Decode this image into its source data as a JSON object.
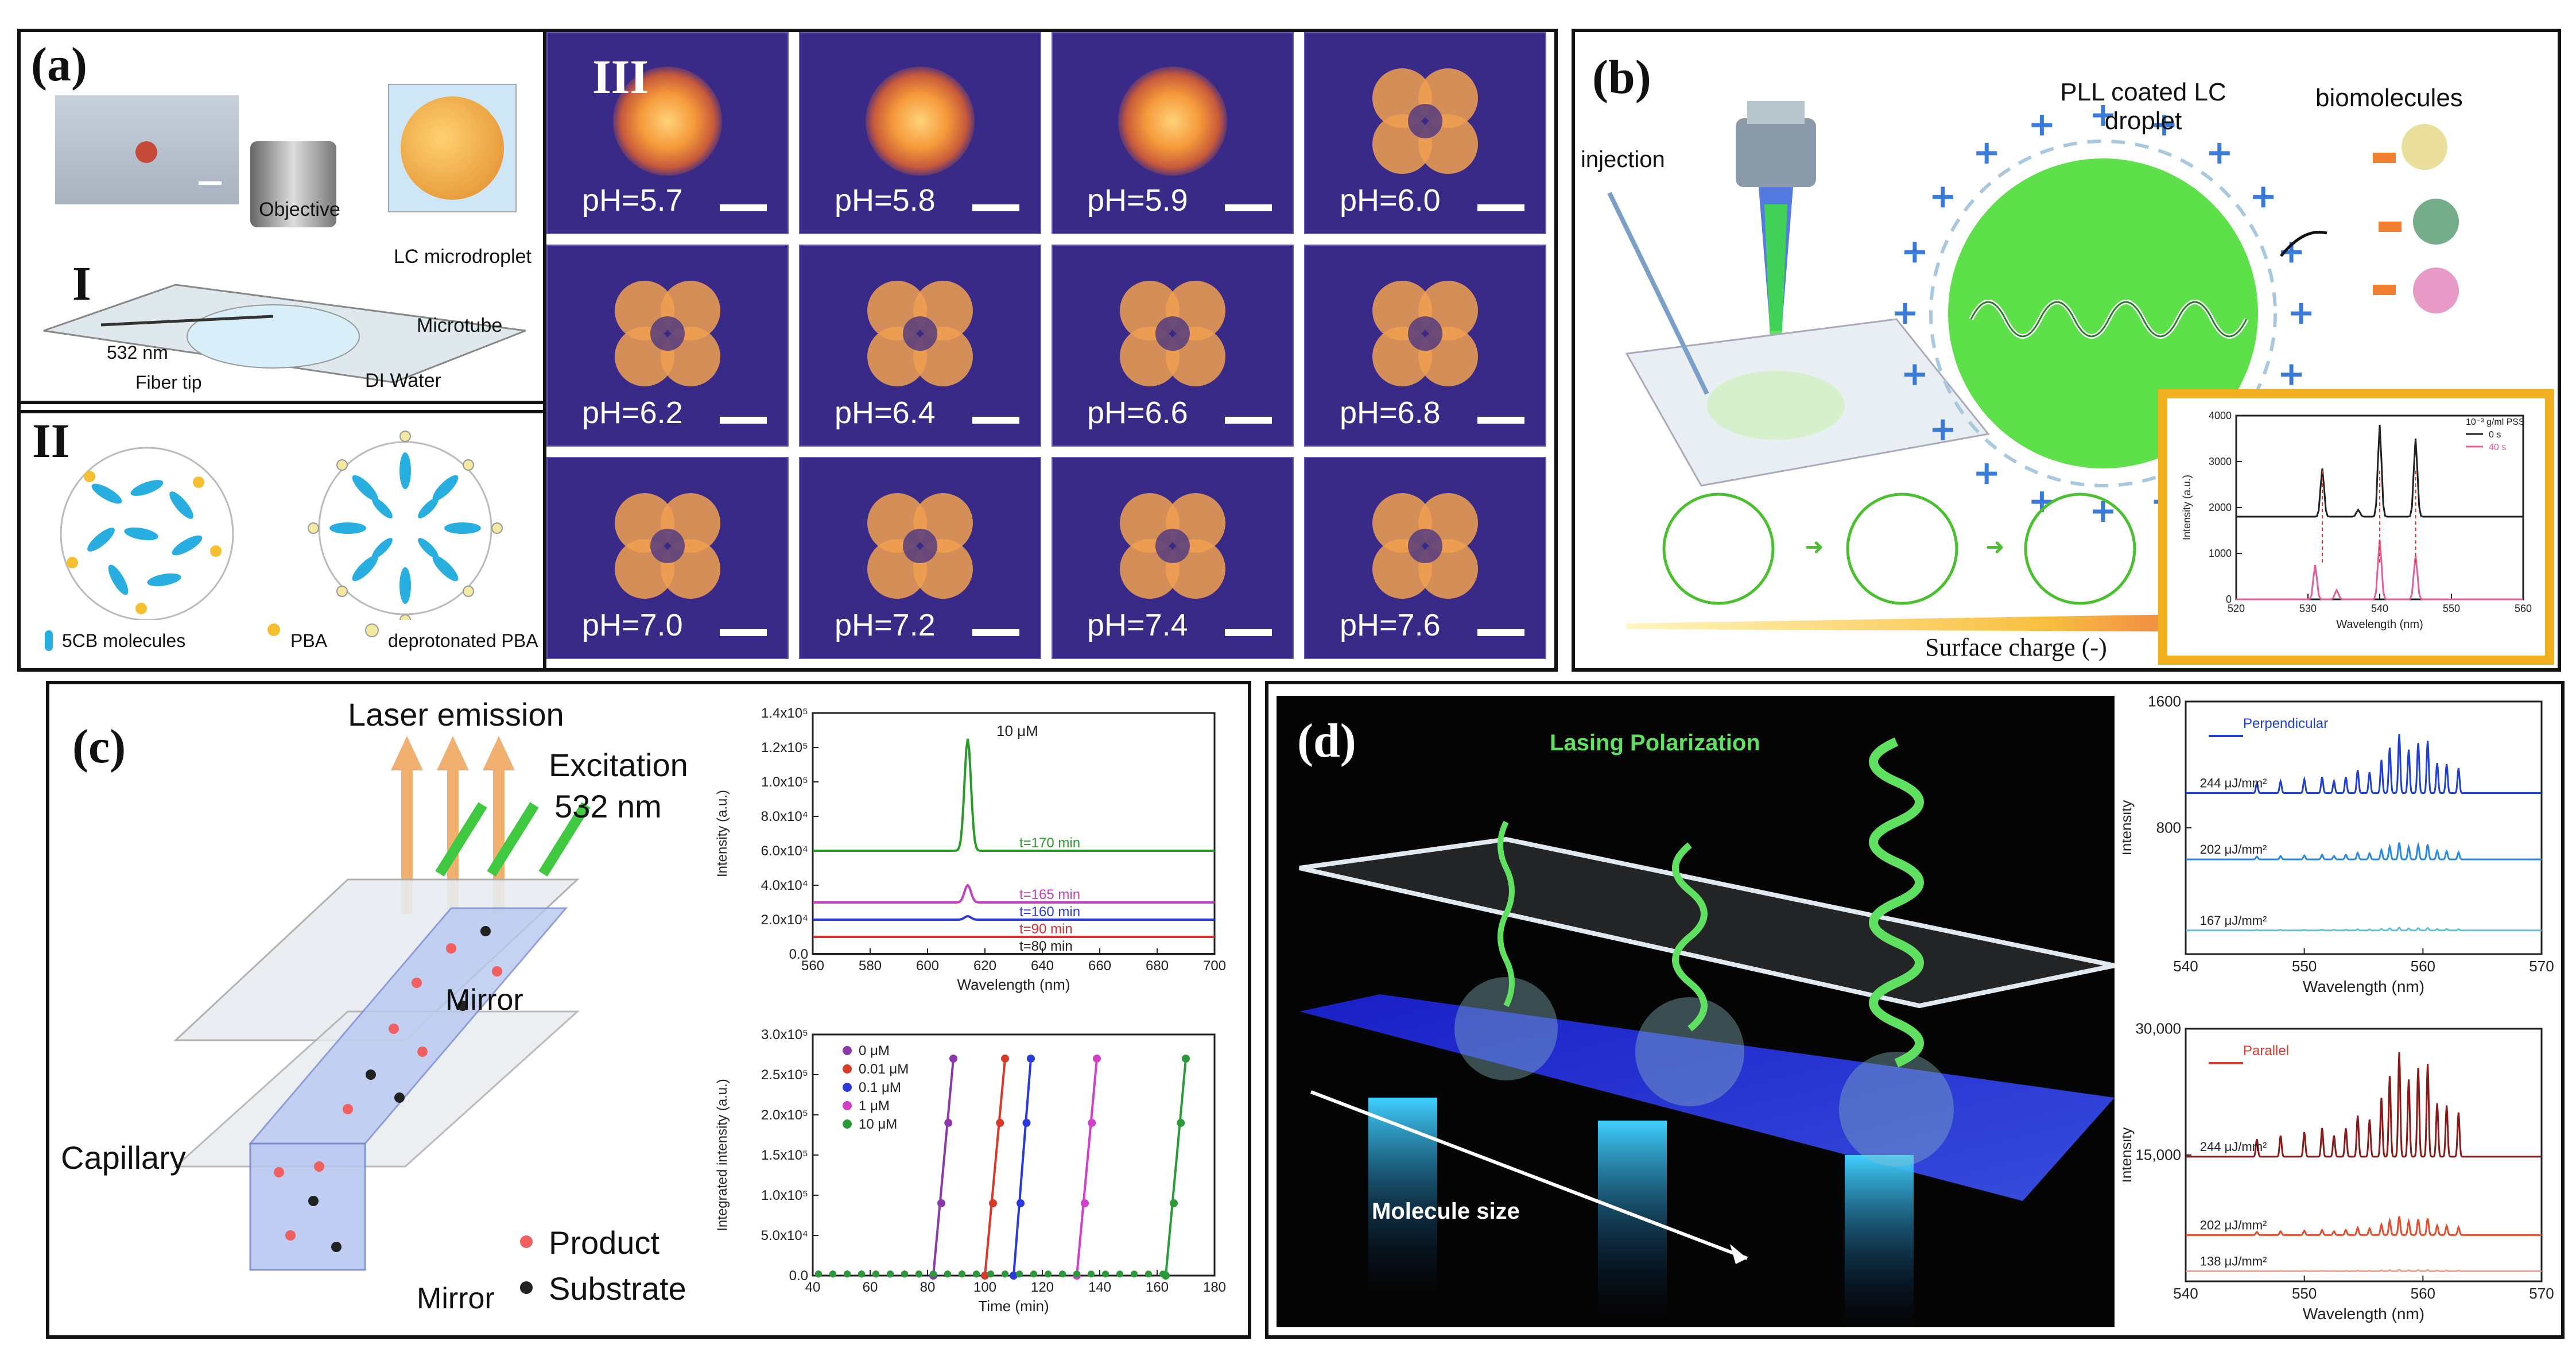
{
  "figure": {
    "panel_a": {
      "label": "(a)",
      "roman_I": "I",
      "roman_II": "II",
      "roman_III": "III",
      "setup_labels": [
        "Objective",
        "LC microdroplet",
        "532 nm",
        "Microtube",
        "Fiber tip",
        "DI Water"
      ],
      "legend": [
        "5CB molecules",
        "PBA",
        "deprotonated PBA"
      ],
      "tiles": [
        "pH=5.7",
        "pH=5.8",
        "pH=5.9",
        "pH=6.0",
        "pH=6.2",
        "pH=6.4",
        "pH=6.6",
        "pH=6.8",
        "pH=7.0",
        "pH=7.2",
        "pH=7.4",
        "pH=7.6"
      ]
    },
    "panel_b": {
      "label": "(b)",
      "injection": "injection",
      "droplet": "PLL coated LC droplet",
      "biomolecules": "biomolecules",
      "surface_charge": "Surface charge (-)",
      "colors": {
        "droplet": "#5de04a",
        "plus": "#3a7ad8",
        "frame": "#f0b020"
      }
    },
    "panel_c": {
      "label": "(c)",
      "laser_emission": "Laser emission",
      "excitation": "Excitation",
      "wavelength": "532 nm",
      "mirror_top": "Mirror",
      "mirror_bottom": "Mirror",
      "capillary": "Capillary",
      "product": "Product",
      "substrate": "Substrate"
    },
    "panel_d": {
      "label": "(d)",
      "lasing_polarization": "Lasing Polarization",
      "molecule_size": "Molecule size"
    }
  },
  "chart_data": [
    {
      "id": "b-inset",
      "type": "line",
      "xlabel": "Wavelength (nm)",
      "ylabel": "Intensity (a.u.)",
      "xlim": [
        520,
        560
      ],
      "ylim": [
        0,
        4000
      ],
      "xticks": [
        "520",
        "530",
        "540",
        "550",
        "560"
      ],
      "yticks": [
        "0",
        "1000",
        "2000",
        "3000",
        "4000"
      ],
      "legend_title": "10⁻³ g/ml PSS",
      "series": [
        {
          "name": "0 s",
          "color": "#222222",
          "baseline": 1800,
          "peaks": [
            [
              532,
              2850
            ],
            [
              537,
              1950
            ],
            [
              540,
              3800
            ],
            [
              545,
              3500
            ]
          ]
        },
        {
          "name": "40 s",
          "color": "#e0609a",
          "baseline": 0,
          "peaks": [
            [
              531,
              750
            ],
            [
              534,
              200
            ],
            [
              540,
              1300
            ],
            [
              545,
              950
            ]
          ]
        }
      ]
    },
    {
      "id": "c-top",
      "type": "line",
      "title": "10 μM",
      "xlabel": "Wavelength (nm)",
      "ylabel": "Intensity (a.u.)",
      "xlim": [
        560,
        700
      ],
      "ylim": [
        0,
        140000
      ],
      "xticks": [
        "560",
        "580",
        "600",
        "620",
        "640",
        "660",
        "680",
        "700"
      ],
      "yticks": [
        "0.0",
        "2.0x10⁴",
        "4.0x10⁴",
        "6.0x10⁴",
        "8.0x10⁴",
        "1.0x10⁵",
        "1.2x10⁵",
        "1.4x10⁵"
      ],
      "series": [
        {
          "name": "t=170 min",
          "color": "#2a9a2a",
          "baseline": 60000,
          "peak_x": 614,
          "peak_y": 125000
        },
        {
          "name": "t=165 min",
          "color": "#c040c0",
          "baseline": 30000,
          "peak_x": 614,
          "peak_y": 40000
        },
        {
          "name": "t=160 min",
          "color": "#2a3ad8",
          "baseline": 20000,
          "peak_x": 614,
          "peak_y": 22000
        },
        {
          "name": "t=90 min",
          "color": "#d83030",
          "baseline": 10000,
          "peak_x": 614,
          "peak_y": 10000
        },
        {
          "name": "t=80 min",
          "color": "#222222",
          "baseline": 0,
          "peak_x": 614,
          "peak_y": 0
        }
      ]
    },
    {
      "id": "c-bottom",
      "type": "scatter",
      "xlabel": "Time (min)",
      "ylabel": "Integrated intensity (a.u.)",
      "xlim": [
        40,
        180
      ],
      "ylim": [
        0,
        300000
      ],
      "xticks": [
        "40",
        "60",
        "80",
        "100",
        "120",
        "140",
        "160",
        "180"
      ],
      "yticks": [
        "0.0",
        "5.0x10⁴",
        "1.0x10⁵",
        "1.5x10⁵",
        "2.0x10⁵",
        "2.5x10⁵",
        "3.0x10⁵"
      ],
      "series": [
        {
          "name": "0 μM",
          "color": "#8a3aa8",
          "onset": 82,
          "rise_end": 89
        },
        {
          "name": "0.01 μM",
          "color": "#d83a2a",
          "onset": 100,
          "rise_end": 107
        },
        {
          "name": "0.1 μM",
          "color": "#2a3ad8",
          "onset": 110,
          "rise_end": 116
        },
        {
          "name": "1 μM",
          "color": "#d040c8",
          "onset": 132,
          "rise_end": 139
        },
        {
          "name": "10 μM",
          "color": "#2a9a3a",
          "onset": 163,
          "rise_end": 170
        }
      ]
    },
    {
      "id": "d-top",
      "type": "line",
      "title": "Perpendicular",
      "xlabel": "Wavelength (nm)",
      "ylabel": "Intensity",
      "xlim": [
        540,
        570
      ],
      "ylim": [
        0,
        1600
      ],
      "xticks": [
        "540",
        "550",
        "560",
        "570"
      ],
      "yticks": [
        "800",
        "1600"
      ],
      "series": [
        {
          "name": "244 μJ/mm²",
          "color": "#2040d0",
          "baseline": 1020,
          "amp": 420
        },
        {
          "name": "202 μJ/mm²",
          "color": "#2a8ae0",
          "baseline": 600,
          "amp": 120
        },
        {
          "name": "167 μJ/mm²",
          "color": "#60c0e0",
          "baseline": 150,
          "amp": 20
        }
      ]
    },
    {
      "id": "d-bottom",
      "type": "line",
      "title": "Parallel",
      "xlabel": "Wavelength (nm)",
      "ylabel": "Intensity",
      "xlim": [
        540,
        570
      ],
      "ylim": [
        0,
        30000
      ],
      "xticks": [
        "540",
        "550",
        "560",
        "570"
      ],
      "yticks": [
        "15,000",
        "30,000"
      ],
      "series": [
        {
          "name": "244 μJ/mm²",
          "color": "#8a1a1a",
          "baseline": 14800,
          "amp": 14000
        },
        {
          "name": "202 μJ/mm²",
          "color": "#e05030",
          "baseline": 5500,
          "amp": 2500
        },
        {
          "name": "138 μJ/mm²",
          "color": "#f0a090",
          "baseline": 1200,
          "amp": 200
        }
      ]
    }
  ]
}
